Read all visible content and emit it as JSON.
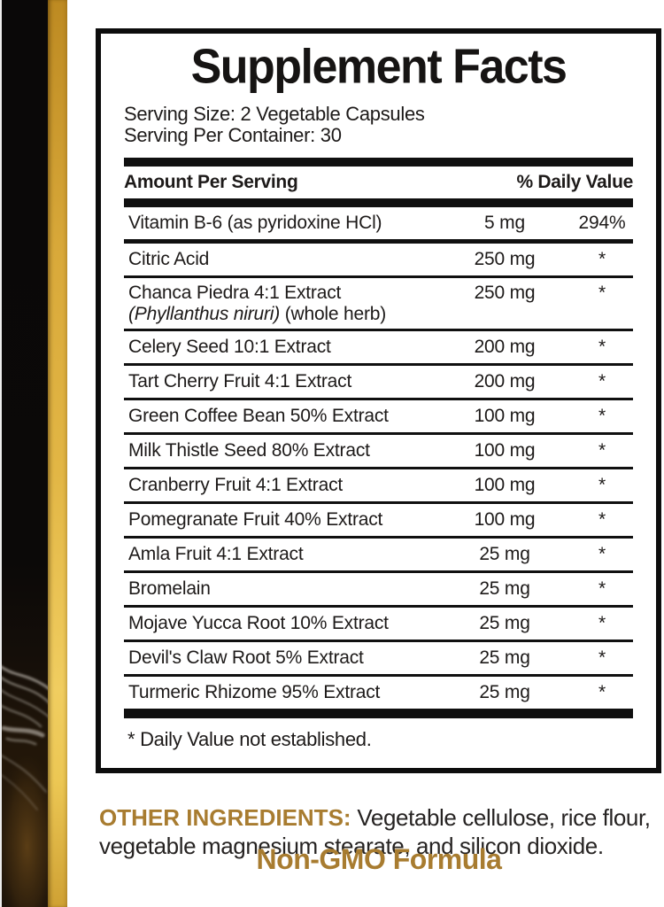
{
  "panel": {
    "title": "Supplement Facts",
    "serving_size": "Serving Size: 2 Vegetable Capsules",
    "serving_per_container": "Serving Per Container: 30",
    "header": {
      "amount_label": "Amount Per Serving",
      "daily_value_label": "% Daily Value"
    },
    "rows": [
      {
        "name": "Vitamin B-6 (as pyridoxine HCl)",
        "amount": "5 mg",
        "dv": "294%",
        "sep": "medium"
      },
      {
        "name": "Citric Acid",
        "amount": "250 mg",
        "dv": "*",
        "sep": "thin"
      },
      {
        "name": "Chanca Piedra 4:1 Extract",
        "sub_italic": "(Phyllanthus niruri)",
        "sub_plain": " (whole herb)",
        "amount": "250 mg",
        "dv": "*",
        "sep": "thin"
      },
      {
        "name": "Celery Seed 10:1 Extract",
        "amount": "200 mg",
        "dv": "*",
        "sep": "thin"
      },
      {
        "name": "Tart Cherry Fruit 4:1 Extract",
        "amount": "200 mg",
        "dv": "*",
        "sep": "thin"
      },
      {
        "name": "Green Coffee Bean 50% Extract",
        "amount": "100 mg",
        "dv": "*",
        "sep": "thin"
      },
      {
        "name": "Milk Thistle Seed 80% Extract",
        "amount": "100 mg",
        "dv": "*",
        "sep": "thin"
      },
      {
        "name": "Cranberry Fruit 4:1 Extract",
        "amount": "100 mg",
        "dv": "*",
        "sep": "thin"
      },
      {
        "name": "Pomegranate Fruit 40% Extract",
        "amount": "100 mg",
        "dv": "*",
        "sep": "thin"
      },
      {
        "name": "Amla Fruit 4:1 Extract",
        "amount": "25 mg",
        "dv": "*",
        "sep": "thin"
      },
      {
        "name": "Bromelain",
        "amount": "25 mg",
        "dv": "*",
        "sep": "thin"
      },
      {
        "name": "Mojave Yucca Root 10% Extract",
        "amount": "25 mg",
        "dv": "*",
        "sep": "thin"
      },
      {
        "name": "Devil's Claw Root 5% Extract",
        "amount": "25 mg",
        "dv": "*",
        "sep": "thin"
      },
      {
        "name": "Turmeric Rhizome 95% Extract",
        "amount": "25 mg",
        "dv": "*",
        "sep": "none"
      }
    ],
    "footnote": "* Daily Value not established."
  },
  "other_ingredients": {
    "label": "OTHER INGREDIENTS:",
    "text": " Vegetable cellulose, rice flour, vegetable magnesium stearate, and silicon dioxide."
  },
  "non_gmo": "Non-GMO Formula",
  "colors": {
    "accent_gold_text": "#a87c30",
    "gold_strip_top": "#bd8a22",
    "gold_strip_bright": "#f0cd60",
    "gold_strip_bottom": "#cfa134",
    "rule": "#101010"
  }
}
